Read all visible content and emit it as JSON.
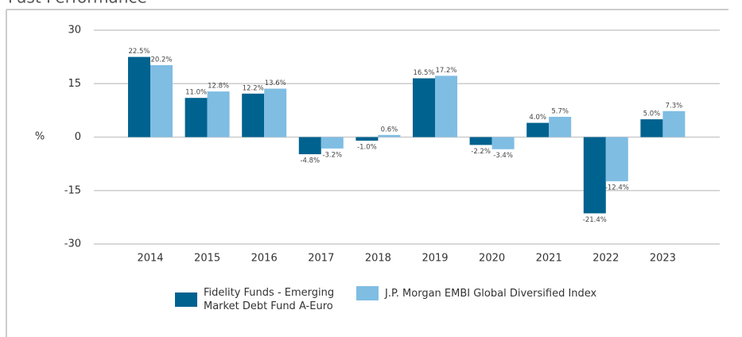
{
  "chart_data": {
    "type": "bar",
    "title": "Past Performance",
    "y_label": "%",
    "categories": [
      "2014",
      "2015",
      "2016",
      "2017",
      "2018",
      "2019",
      "2020",
      "2021",
      "2022",
      "2023"
    ],
    "series": [
      {
        "name": "Fidelity Funds - Emerging Market Debt Fund A-Euro",
        "color": "#00628f",
        "values": [
          22.5,
          11.0,
          12.2,
          -4.8,
          -1.0,
          16.5,
          -2.2,
          4.0,
          -21.4,
          5.0
        ],
        "value_labels": [
          "22.5%",
          "11.0%",
          "12.2%",
          "-4.8%",
          "-1.0%",
          "16.5%",
          "-2.2%",
          "4.0%",
          "-21.4%",
          "5.0%"
        ]
      },
      {
        "name": "J.P. Morgan EMBI Global Diversified Index",
        "color": "#7fbde3",
        "values": [
          20.2,
          12.8,
          13.6,
          -3.2,
          0.6,
          17.2,
          -3.4,
          5.7,
          -12.4,
          7.3
        ],
        "value_labels": [
          "20.2%",
          "12.8%",
          "13.6%",
          "-3.2%",
          "0.6%",
          "17.2%",
          "-3.4%",
          "5.7%",
          "-12.4%",
          "7.3%"
        ]
      }
    ],
    "ylim": [
      -30,
      30
    ],
    "yticks": [
      30,
      15,
      0,
      -15,
      -30
    ],
    "grid": true
  }
}
